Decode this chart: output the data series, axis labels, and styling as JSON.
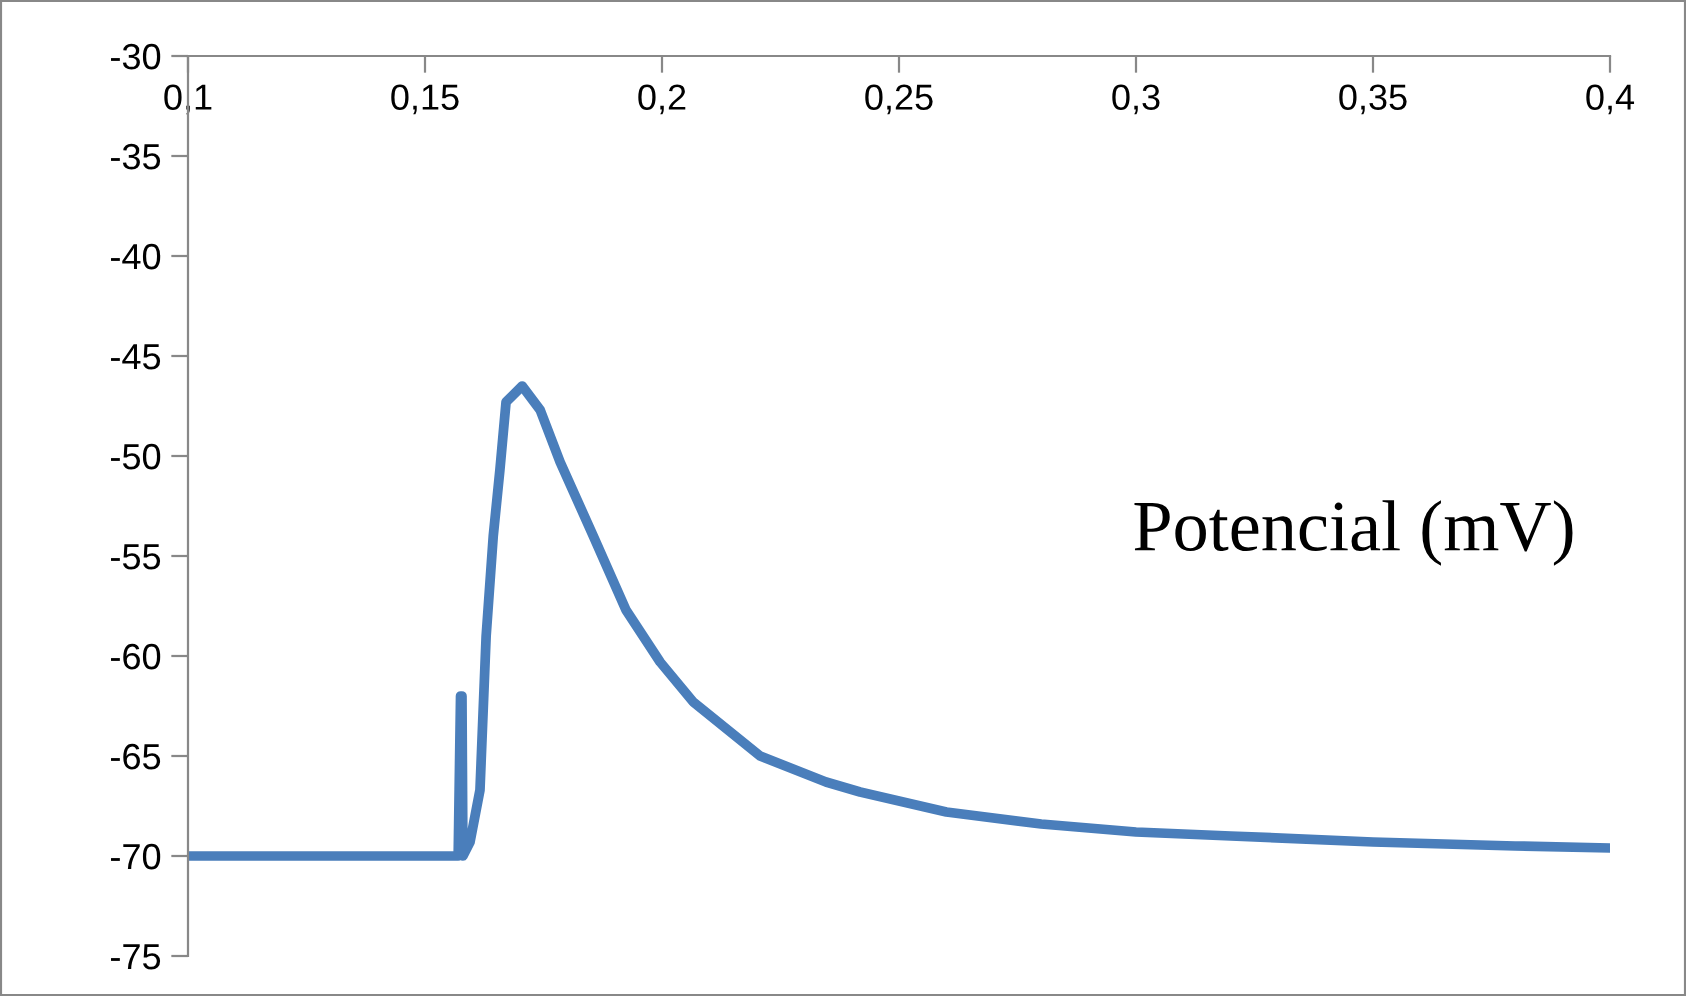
{
  "chart_data": {
    "type": "line",
    "x": [
      0.1,
      0.12,
      0.14,
      0.157,
      0.1575,
      0.1578,
      0.158,
      0.1595,
      0.1616,
      0.1629,
      0.1644,
      0.1658,
      0.1671,
      0.1705,
      0.1743,
      0.1785,
      0.1855,
      0.1924,
      0.1996,
      0.2066,
      0.2207,
      0.2346,
      0.2418,
      0.26,
      0.28,
      0.3,
      0.32,
      0.35,
      0.38,
      0.4
    ],
    "series": [
      {
        "color": "#4a7ebb",
        "values": [
          -70,
          -70,
          -70,
          -70,
          -62,
          -62,
          -70,
          -69.3,
          -66.7,
          -59,
          -54,
          -50.7,
          -47.3,
          -46.5,
          -47.7,
          -50.3,
          -54,
          -57.7,
          -60.3,
          -62.3,
          -65,
          -66.3,
          -66.8,
          -67.8,
          -68.4,
          -68.8,
          -69,
          -69.3,
          -69.5,
          -69.6
        ]
      }
    ],
    "xlim": [
      0.1,
      0.4
    ],
    "ylim": [
      -75,
      -30
    ],
    "xticks": [
      {
        "value": 0.1,
        "label": "0,1"
      },
      {
        "value": 0.15,
        "label": "0,15"
      },
      {
        "value": 0.2,
        "label": "0,2"
      },
      {
        "value": 0.25,
        "label": "0,25"
      },
      {
        "value": 0.3,
        "label": "0,3"
      },
      {
        "value": 0.35,
        "label": "0,35"
      },
      {
        "value": 0.4,
        "label": "0,4"
      }
    ],
    "yticks": [
      -75,
      -70,
      -65,
      -60,
      -55,
      -50,
      -45,
      -40,
      -35,
      -30
    ],
    "grid": false,
    "legend": false,
    "marker": "none",
    "line_style": "solid",
    "annotations": [
      "Potencial (mV)"
    ]
  }
}
